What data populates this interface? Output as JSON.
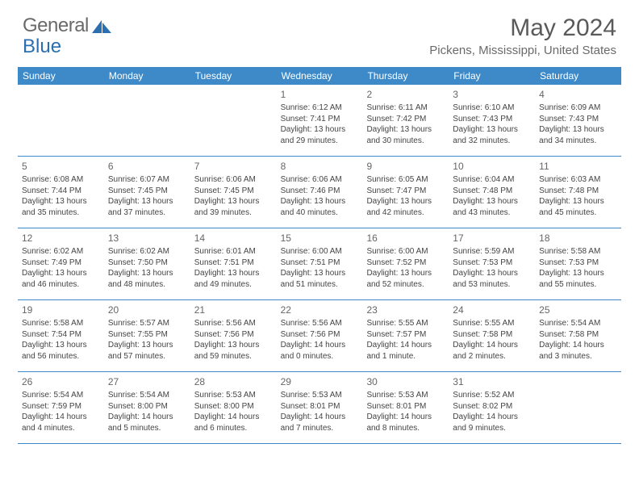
{
  "logo": {
    "text1": "General",
    "text2": "Blue",
    "color1": "#6a6a6a",
    "color2": "#2b6fb0",
    "icon_color": "#2b6fb0"
  },
  "title": "May 2024",
  "location": "Pickens, Mississippi, United States",
  "header_bg": "#3e8ac9",
  "border_color": "#3e8ac9",
  "days_of_week": [
    "Sunday",
    "Monday",
    "Tuesday",
    "Wednesday",
    "Thursday",
    "Friday",
    "Saturday"
  ],
  "weeks": [
    [
      null,
      null,
      null,
      {
        "n": "1",
        "sr": "6:12 AM",
        "ss": "7:41 PM",
        "dl": "13 hours and 29 minutes."
      },
      {
        "n": "2",
        "sr": "6:11 AM",
        "ss": "7:42 PM",
        "dl": "13 hours and 30 minutes."
      },
      {
        "n": "3",
        "sr": "6:10 AM",
        "ss": "7:43 PM",
        "dl": "13 hours and 32 minutes."
      },
      {
        "n": "4",
        "sr": "6:09 AM",
        "ss": "7:43 PM",
        "dl": "13 hours and 34 minutes."
      }
    ],
    [
      {
        "n": "5",
        "sr": "6:08 AM",
        "ss": "7:44 PM",
        "dl": "13 hours and 35 minutes."
      },
      {
        "n": "6",
        "sr": "6:07 AM",
        "ss": "7:45 PM",
        "dl": "13 hours and 37 minutes."
      },
      {
        "n": "7",
        "sr": "6:06 AM",
        "ss": "7:45 PM",
        "dl": "13 hours and 39 minutes."
      },
      {
        "n": "8",
        "sr": "6:06 AM",
        "ss": "7:46 PM",
        "dl": "13 hours and 40 minutes."
      },
      {
        "n": "9",
        "sr": "6:05 AM",
        "ss": "7:47 PM",
        "dl": "13 hours and 42 minutes."
      },
      {
        "n": "10",
        "sr": "6:04 AM",
        "ss": "7:48 PM",
        "dl": "13 hours and 43 minutes."
      },
      {
        "n": "11",
        "sr": "6:03 AM",
        "ss": "7:48 PM",
        "dl": "13 hours and 45 minutes."
      }
    ],
    [
      {
        "n": "12",
        "sr": "6:02 AM",
        "ss": "7:49 PM",
        "dl": "13 hours and 46 minutes."
      },
      {
        "n": "13",
        "sr": "6:02 AM",
        "ss": "7:50 PM",
        "dl": "13 hours and 48 minutes."
      },
      {
        "n": "14",
        "sr": "6:01 AM",
        "ss": "7:51 PM",
        "dl": "13 hours and 49 minutes."
      },
      {
        "n": "15",
        "sr": "6:00 AM",
        "ss": "7:51 PM",
        "dl": "13 hours and 51 minutes."
      },
      {
        "n": "16",
        "sr": "6:00 AM",
        "ss": "7:52 PM",
        "dl": "13 hours and 52 minutes."
      },
      {
        "n": "17",
        "sr": "5:59 AM",
        "ss": "7:53 PM",
        "dl": "13 hours and 53 minutes."
      },
      {
        "n": "18",
        "sr": "5:58 AM",
        "ss": "7:53 PM",
        "dl": "13 hours and 55 minutes."
      }
    ],
    [
      {
        "n": "19",
        "sr": "5:58 AM",
        "ss": "7:54 PM",
        "dl": "13 hours and 56 minutes."
      },
      {
        "n": "20",
        "sr": "5:57 AM",
        "ss": "7:55 PM",
        "dl": "13 hours and 57 minutes."
      },
      {
        "n": "21",
        "sr": "5:56 AM",
        "ss": "7:56 PM",
        "dl": "13 hours and 59 minutes."
      },
      {
        "n": "22",
        "sr": "5:56 AM",
        "ss": "7:56 PM",
        "dl": "14 hours and 0 minutes."
      },
      {
        "n": "23",
        "sr": "5:55 AM",
        "ss": "7:57 PM",
        "dl": "14 hours and 1 minute."
      },
      {
        "n": "24",
        "sr": "5:55 AM",
        "ss": "7:58 PM",
        "dl": "14 hours and 2 minutes."
      },
      {
        "n": "25",
        "sr": "5:54 AM",
        "ss": "7:58 PM",
        "dl": "14 hours and 3 minutes."
      }
    ],
    [
      {
        "n": "26",
        "sr": "5:54 AM",
        "ss": "7:59 PM",
        "dl": "14 hours and 4 minutes."
      },
      {
        "n": "27",
        "sr": "5:54 AM",
        "ss": "8:00 PM",
        "dl": "14 hours and 5 minutes."
      },
      {
        "n": "28",
        "sr": "5:53 AM",
        "ss": "8:00 PM",
        "dl": "14 hours and 6 minutes."
      },
      {
        "n": "29",
        "sr": "5:53 AM",
        "ss": "8:01 PM",
        "dl": "14 hours and 7 minutes."
      },
      {
        "n": "30",
        "sr": "5:53 AM",
        "ss": "8:01 PM",
        "dl": "14 hours and 8 minutes."
      },
      {
        "n": "31",
        "sr": "5:52 AM",
        "ss": "8:02 PM",
        "dl": "14 hours and 9 minutes."
      },
      null
    ]
  ],
  "labels": {
    "sunrise": "Sunrise:",
    "sunset": "Sunset:",
    "daylight": "Daylight:"
  }
}
